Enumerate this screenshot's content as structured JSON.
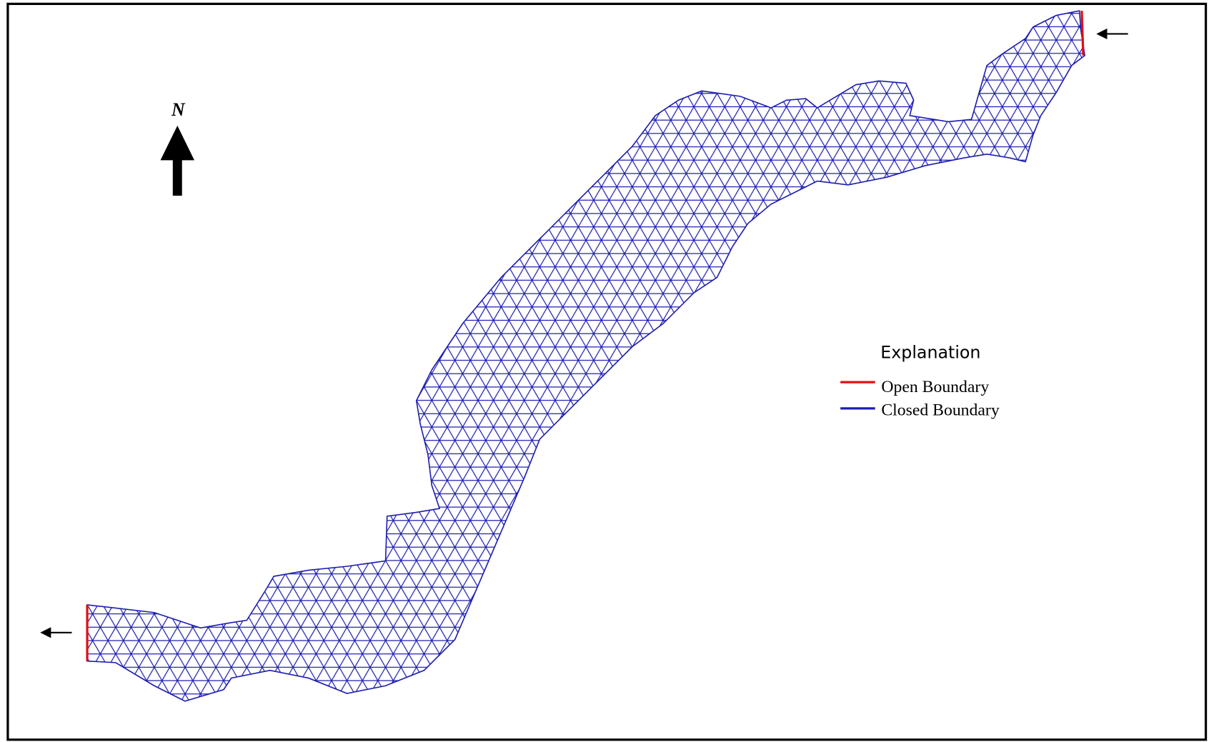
{
  "north_label": "N",
  "legend": {
    "title": "Explanation",
    "items": [
      "Open Boundary",
      "Closed Boundary"
    ]
  }
}
